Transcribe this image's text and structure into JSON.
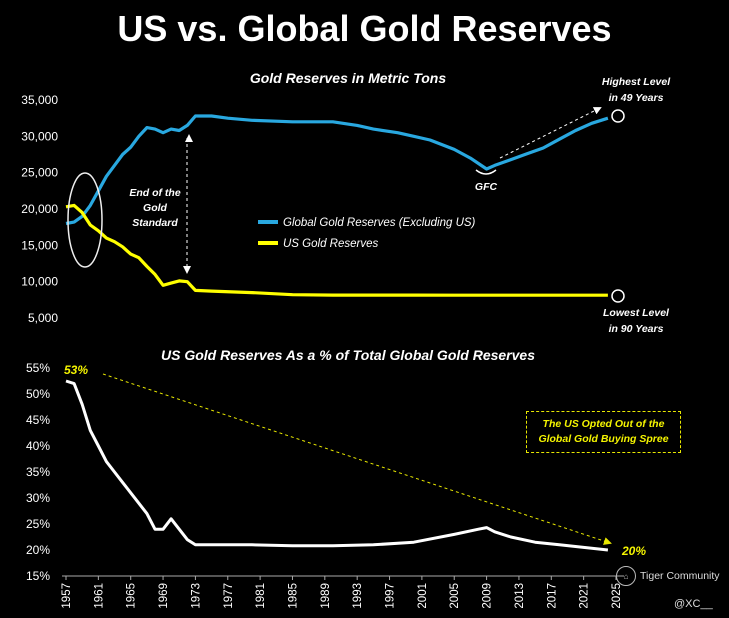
{
  "title": "US vs. Global Gold Reserves",
  "top_chart": {
    "title": "Gold Reserves in Metric Tons",
    "y_ticks": [
      "35,000",
      "30,000",
      "25,000",
      "20,000",
      "15,000",
      "10,000",
      "5,000"
    ],
    "y_tick_values": [
      35000,
      30000,
      25000,
      20000,
      15000,
      10000,
      5000
    ],
    "legend": {
      "global": "Global Gold Reserves (Excluding US)",
      "us": "US Gold Reserves"
    },
    "annotations": {
      "end_gold_standard": [
        "End of the",
        "Gold",
        "Standard"
      ],
      "gfc": "GFC",
      "highest": [
        "Highest Level",
        "in 49 Years"
      ],
      "lowest": [
        "Lowest Level",
        "in 90 Years"
      ]
    },
    "colors": {
      "global": "#29a8e0",
      "us": "#ffff00"
    }
  },
  "bottom_chart": {
    "title": "US Gold Reserves As a % of Total Global Gold Reserves",
    "y_ticks": [
      "55%",
      "50%",
      "45%",
      "40%",
      "35%",
      "30%",
      "25%",
      "20%",
      "15%"
    ],
    "y_tick_values": [
      55,
      50,
      45,
      40,
      35,
      30,
      25,
      20,
      15
    ],
    "start_label": "53%",
    "end_label": "20%",
    "callout": "The US Opted Out of the Global Gold Buying Spree"
  },
  "x_ticks": [
    "1957",
    "1961",
    "1965",
    "1969",
    "1973",
    "1977",
    "1981",
    "1985",
    "1989",
    "1993",
    "1997",
    "2001",
    "2005",
    "2009",
    "2013",
    "2017",
    "2021",
    "2025"
  ],
  "x_tick_values": [
    1957,
    1961,
    1965,
    1969,
    1973,
    1977,
    1981,
    1985,
    1989,
    1993,
    1997,
    2001,
    2005,
    2009,
    2013,
    2017,
    2021,
    2025
  ],
  "watermark": "Tiger Community",
  "handle": "@XC__",
  "chart_data": [
    {
      "type": "line",
      "title": "Gold Reserves in Metric Tons",
      "xlabel": "",
      "ylabel": "",
      "ylim": [
        5000,
        35000
      ],
      "xlim": [
        1957,
        2025
      ],
      "series": [
        {
          "name": "Global Gold Reserves (Excluding US)",
          "x": [
            1957,
            1958,
            1959,
            1960,
            1961,
            1962,
            1963,
            1964,
            1965,
            1966,
            1967,
            1968,
            1969,
            1970,
            1971,
            1972,
            1973,
            1975,
            1977,
            1980,
            1985,
            1990,
            1993,
            1995,
            1998,
            2000,
            2002,
            2005,
            2007,
            2009,
            2010,
            2012,
            2014,
            2016,
            2018,
            2020,
            2022,
            2024
          ],
          "y": [
            18000,
            18200,
            19000,
            20500,
            22500,
            24500,
            26000,
            27500,
            28500,
            30000,
            31200,
            31000,
            30500,
            31000,
            30800,
            31500,
            32800,
            32800,
            32500,
            32200,
            32000,
            32000,
            31500,
            31000,
            30500,
            30000,
            29500,
            28200,
            27000,
            25500,
            26000,
            26800,
            27600,
            28400,
            29600,
            30800,
            31800,
            32500
          ]
        },
        {
          "name": "US Gold Reserves",
          "x": [
            1957,
            1958,
            1959,
            1960,
            1961,
            1962,
            1963,
            1964,
            1965,
            1966,
            1967,
            1968,
            1969,
            1970,
            1971,
            1972,
            1973,
            1975,
            1980,
            1985,
            1990,
            1995,
            2000,
            2005,
            2010,
            2015,
            2020,
            2024
          ],
          "y": [
            20300,
            20500,
            19500,
            17800,
            17000,
            16000,
            15500,
            14800,
            13800,
            13300,
            12100,
            11000,
            9500,
            9800,
            10100,
            10000,
            8800,
            8700,
            8500,
            8200,
            8150,
            8150,
            8150,
            8140,
            8135,
            8135,
            8135,
            8135
          ]
        }
      ]
    },
    {
      "type": "line",
      "title": "US Gold Reserves As a % of Total Global Gold Reserves",
      "xlabel": "",
      "ylabel": "",
      "ylim": [
        15,
        55
      ],
      "xlim": [
        1957,
        2025
      ],
      "series": [
        {
          "name": "US share (%)",
          "x": [
            1957,
            1958,
            1959,
            1960,
            1961,
            1962,
            1963,
            1964,
            1965,
            1966,
            1967,
            1968,
            1969,
            1970,
            1971,
            1972,
            1973,
            1975,
            1977,
            1980,
            1985,
            1990,
            1995,
            2000,
            2005,
            2008,
            2009,
            2010,
            2012,
            2015,
            2018,
            2021,
            2024
          ],
          "y": [
            52.5,
            52,
            48,
            43,
            40,
            37,
            35,
            33,
            31,
            29,
            27,
            24,
            24,
            26,
            24,
            22,
            21,
            21,
            21,
            21,
            20.8,
            20.8,
            21,
            21.5,
            23,
            24,
            24.3,
            23.5,
            22.5,
            21.5,
            21,
            20.5,
            20
          ]
        }
      ]
    }
  ]
}
